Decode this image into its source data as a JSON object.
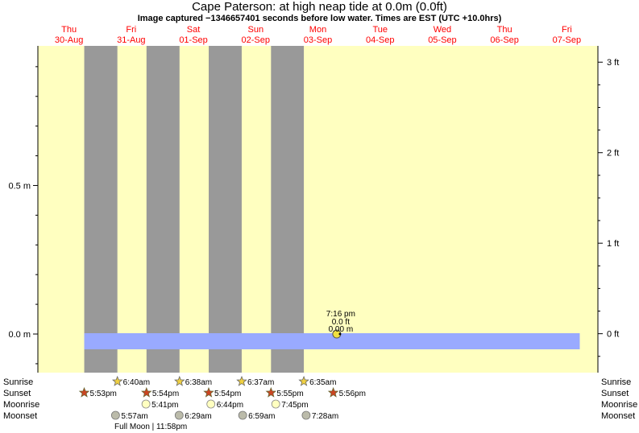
{
  "title": "Cape Paterson: at high  neap tide at 0.0m (0.0ft)",
  "subtitle": "Image captured −1346657401 seconds before low water. Times are EST (UTC +10.0hrs)",
  "colors": {
    "day": "#ffffc0",
    "night": "#999999",
    "tide": "#99aaff",
    "day_label": "#ff0000",
    "sunrise_star": "#f0d040",
    "sunset_star": "#cc4422",
    "moonrise": "#ffffc0",
    "moonset": "#bbbbaa"
  },
  "chart_data": {
    "type": "area",
    "title": "Cape Paterson: at high  neap tide at 0.0m (0.0ft)",
    "xlabel": "",
    "ylabel": "",
    "x_range": [
      "2018-08-30T00:00",
      "2018-09-08T00:00"
    ],
    "ylim_m": [
      -0.13,
      0.97
    ],
    "ylim_ft": [
      -0.43,
      3.18
    ],
    "days": [
      {
        "dow": "Thu",
        "date": "30-Aug"
      },
      {
        "dow": "Fri",
        "date": "31-Aug"
      },
      {
        "dow": "Sat",
        "date": "01-Sep"
      },
      {
        "dow": "Sun",
        "date": "02-Sep"
      },
      {
        "dow": "Mon",
        "date": "03-Sep"
      },
      {
        "dow": "Tue",
        "date": "04-Sep"
      },
      {
        "dow": "Wed",
        "date": "05-Sep"
      },
      {
        "dow": "Thu",
        "date": "06-Sep"
      },
      {
        "dow": "Fri",
        "date": "07-Sep"
      }
    ],
    "y_ticks_m": [
      {
        "value": 0.5,
        "label": "0.5 m"
      },
      {
        "value": 0.0,
        "label": "0.0 m"
      }
    ],
    "y_ticks_ft": [
      {
        "value": 3,
        "label": "3 ft"
      },
      {
        "value": 2,
        "label": "2 ft"
      },
      {
        "value": 1,
        "label": "1 ft"
      },
      {
        "value": 0,
        "label": "0 ft"
      }
    ],
    "night_bands": [
      {
        "start": "2018-08-30T17:53",
        "end": "2018-08-31T06:40"
      },
      {
        "start": "2018-08-31T17:54",
        "end": "2018-09-01T06:38"
      },
      {
        "start": "2018-09-01T17:54",
        "end": "2018-09-02T06:37"
      },
      {
        "start": "2018-09-02T17:55",
        "end": "2018-09-03T06:35"
      }
    ],
    "tide_band": {
      "start": "2018-08-30T17:53",
      "end": "2018-09-07T17:00",
      "level_m": 0.0
    },
    "highlight_point": {
      "time": "2018-09-03T19:16",
      "label_time": "7:16 pm",
      "label_ft": "0.0 ft",
      "label_m": "0.00 m",
      "value_m": 0.0
    },
    "events": {
      "sunrise": [
        {
          "time": "2018-08-31T06:40",
          "label": "6:40am"
        },
        {
          "time": "2018-09-01T06:38",
          "label": "6:38am"
        },
        {
          "time": "2018-09-02T06:37",
          "label": "6:37am"
        },
        {
          "time": "2018-09-03T06:35",
          "label": "6:35am"
        }
      ],
      "sunset": [
        {
          "time": "2018-08-30T17:53",
          "label": "5:53pm"
        },
        {
          "time": "2018-08-31T17:54",
          "label": "5:54pm"
        },
        {
          "time": "2018-09-01T17:54",
          "label": "5:54pm"
        },
        {
          "time": "2018-09-02T17:55",
          "label": "5:55pm"
        },
        {
          "time": "2018-09-03T17:56",
          "label": "5:56pm"
        }
      ],
      "moonrise": [
        {
          "time": "2018-08-31T17:41",
          "label": "5:41pm"
        },
        {
          "time": "2018-09-01T18:44",
          "label": "6:44pm"
        },
        {
          "time": "2018-09-02T19:45",
          "label": "7:45pm"
        }
      ],
      "moonset": [
        {
          "time": "2018-08-31T05:57",
          "label": "5:57am"
        },
        {
          "time": "2018-09-01T06:29",
          "label": "6:29am"
        },
        {
          "time": "2018-09-02T06:59",
          "label": "6:59am"
        },
        {
          "time": "2018-09-03T07:28",
          "label": "7:28am"
        }
      ]
    },
    "row_labels": [
      "Sunrise",
      "Sunset",
      "Moonrise",
      "Moonset"
    ],
    "full_moon_note": "Full Moon | 11:58pm"
  }
}
